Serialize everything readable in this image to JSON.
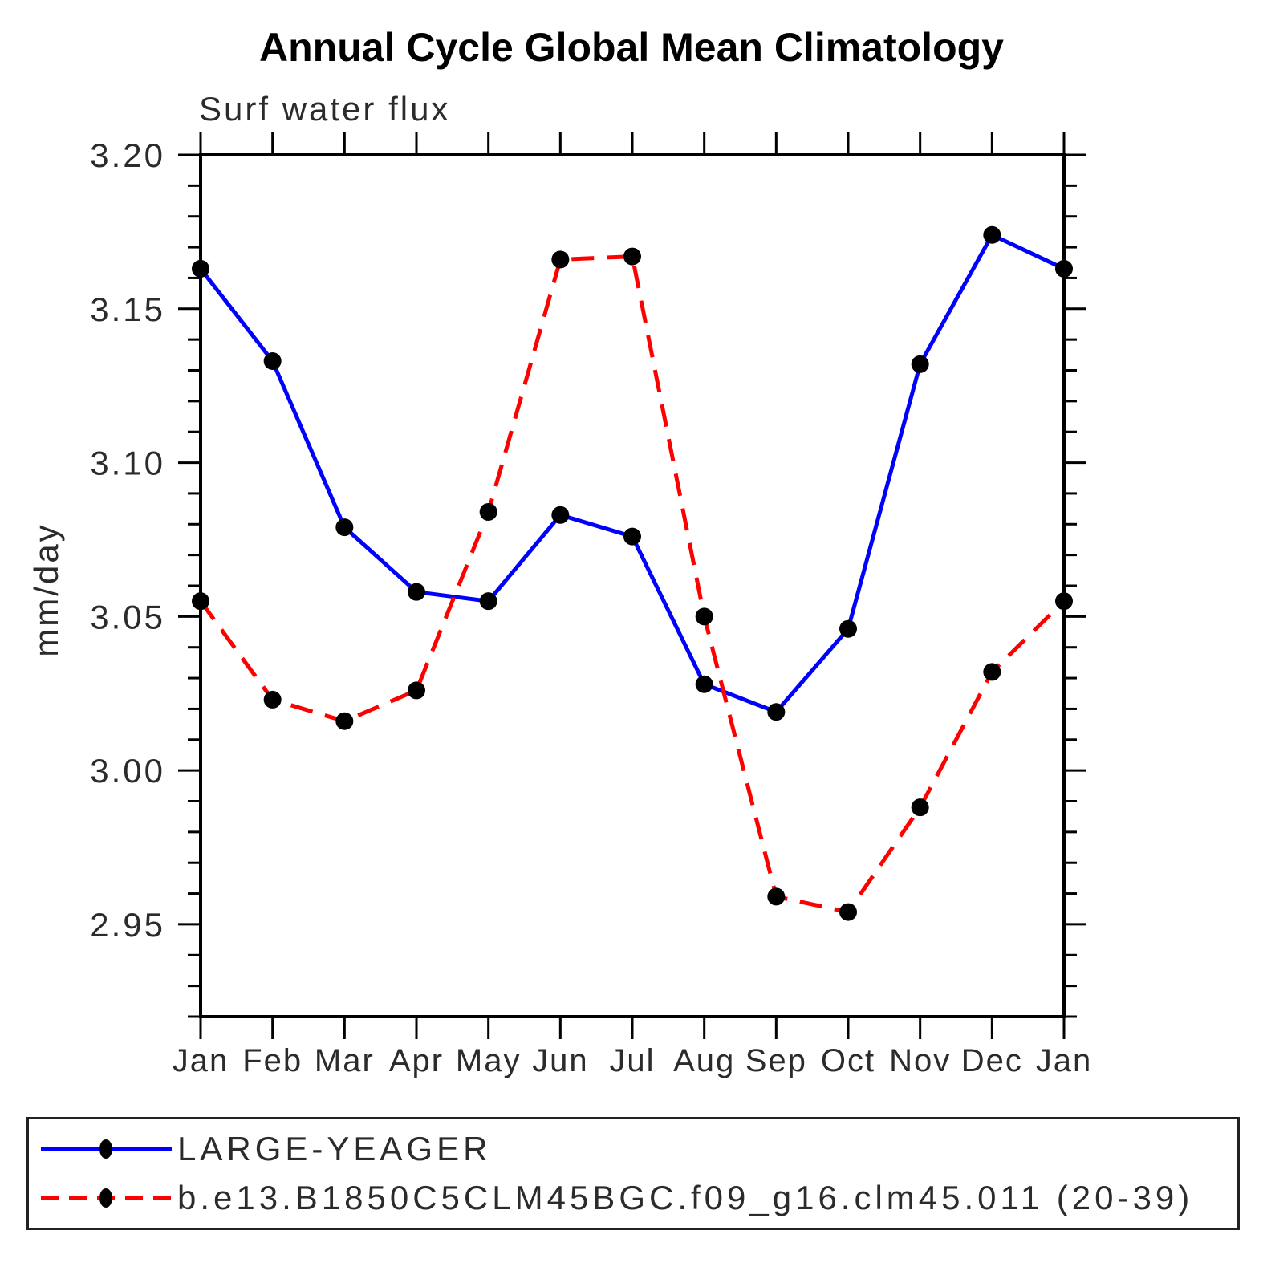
{
  "title": "Annual Cycle Global Mean Climatology",
  "chart_data": {
    "type": "line",
    "title": "Annual Cycle Global Mean Climatology",
    "subtitle": "Surf water flux",
    "xlabel": "",
    "ylabel": "mm/day",
    "categories": [
      "Jan",
      "Feb",
      "Mar",
      "Apr",
      "May",
      "Jun",
      "Jul",
      "Aug",
      "Sep",
      "Oct",
      "Nov",
      "Dec",
      "Jan"
    ],
    "y_axis": {
      "min": 2.92,
      "max": 3.2,
      "major_tick_interval": 0.05,
      "minor_tick_interval": 0.01,
      "tick_labels": [
        "3.20",
        "3.15",
        "3.10",
        "3.05",
        "3.00",
        "2.95"
      ]
    },
    "grid": false,
    "legend_position": "bottom-box",
    "frame_color": "#000000",
    "series": [
      {
        "name": "LARGE-YEAGER",
        "color": "#0000ff",
        "line_style": "solid",
        "marker": "circle",
        "marker_color": "#000000",
        "values": [
          3.163,
          3.133,
          3.079,
          3.058,
          3.055,
          3.083,
          3.076,
          3.028,
          3.019,
          3.046,
          3.132,
          3.174,
          3.163
        ]
      },
      {
        "name": "b.e13.B1850C5CLM45BGC.f09_g16.clm45.011 (20-39)",
        "color": "#ff0000",
        "line_style": "dashed",
        "marker": "circle",
        "marker_color": "#000000",
        "values": [
          3.055,
          3.023,
          3.016,
          3.026,
          3.084,
          3.166,
          3.167,
          3.05,
          2.959,
          2.954,
          2.988,
          3.032,
          3.055
        ]
      }
    ]
  }
}
